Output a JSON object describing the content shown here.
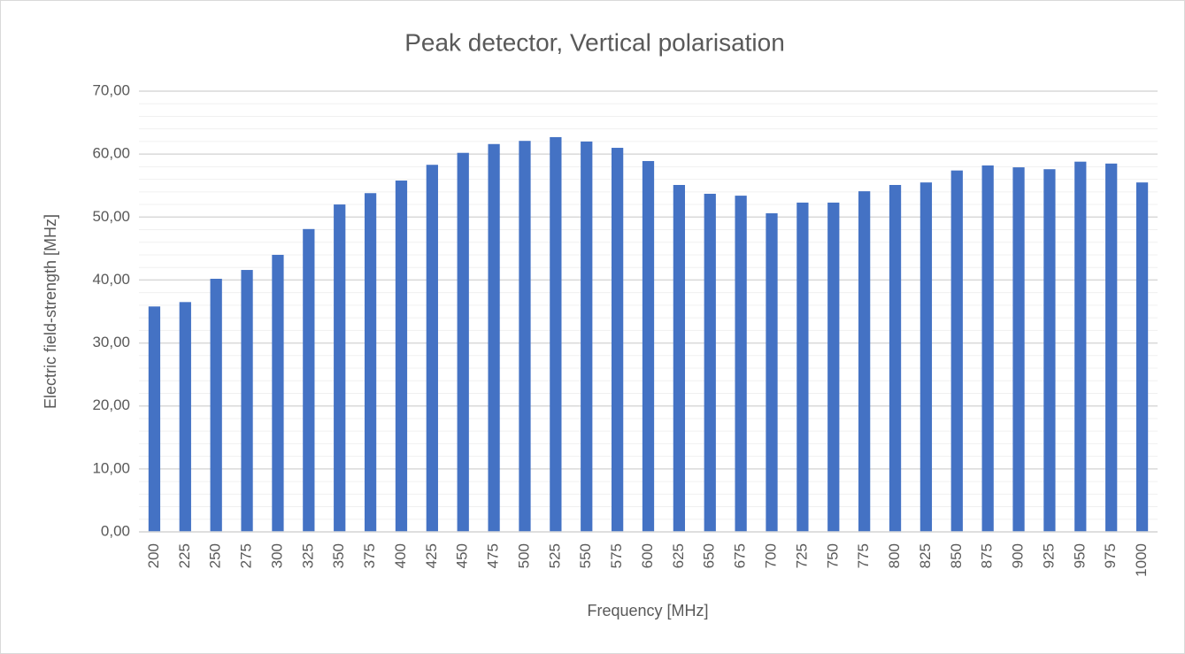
{
  "chart_data": {
    "type": "bar",
    "title": "Peak detector, Vertical polarisation",
    "x_label": "Frequency [MHz]",
    "y_label": "Electric field-strength [MHz]",
    "categories": [
      "200",
      "225",
      "250",
      "275",
      "300",
      "325",
      "350",
      "375",
      "400",
      "425",
      "450",
      "475",
      "500",
      "525",
      "550",
      "575",
      "600",
      "625",
      "650",
      "675",
      "700",
      "725",
      "750",
      "775",
      "800",
      "825",
      "850",
      "875",
      "900",
      "925",
      "950",
      "975",
      "1000"
    ],
    "values": [
      35.8,
      36.5,
      40.2,
      41.6,
      44.0,
      48.1,
      52.0,
      53.8,
      55.8,
      58.3,
      60.2,
      61.6,
      62.1,
      62.7,
      62.0,
      61.0,
      58.9,
      55.1,
      53.7,
      53.4,
      50.6,
      52.3,
      52.3,
      54.1,
      55.1,
      55.5,
      57.4,
      58.2,
      57.9,
      57.6,
      58.8,
      58.5,
      55.5
    ],
    "color": "#4472c4",
    "ylim": [
      0,
      70
    ],
    "yticks": [
      {
        "value": 0,
        "label": "0,00"
      },
      {
        "value": 10,
        "label": "10,00"
      },
      {
        "value": 20,
        "label": "20,00"
      },
      {
        "value": 30,
        "label": "30,00"
      },
      {
        "value": 40,
        "label": "40,00"
      },
      {
        "value": 50,
        "label": "50,00"
      },
      {
        "value": 60,
        "label": "60,00"
      },
      {
        "value": 70,
        "label": "70,00"
      }
    ],
    "minor_yticks": [
      2,
      4,
      6,
      8,
      12,
      14,
      16,
      18,
      22,
      24,
      26,
      28,
      32,
      34,
      36,
      38,
      42,
      44,
      46,
      48,
      52,
      54,
      56,
      58,
      62,
      64,
      66,
      68
    ],
    "grid": true
  }
}
